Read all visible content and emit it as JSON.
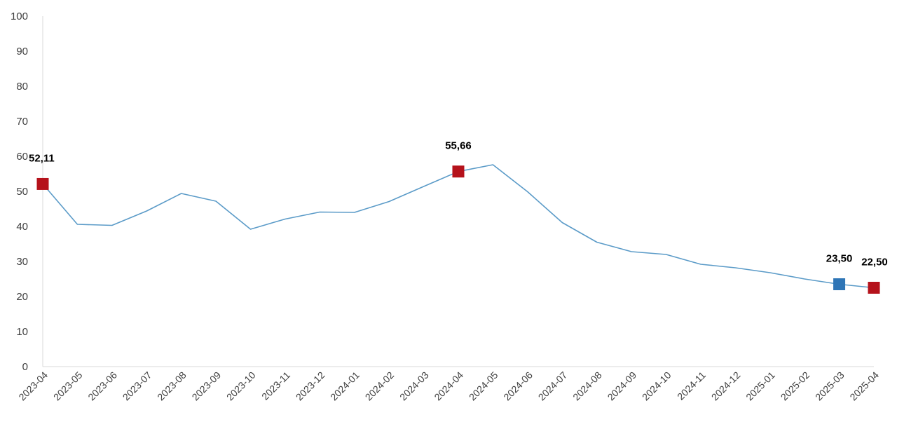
{
  "chart_data": {
    "type": "line",
    "title": "",
    "xlabel": "",
    "ylabel": "",
    "ylim": [
      0,
      100
    ],
    "y_ticks": [
      "0",
      "10",
      "20",
      "30",
      "40",
      "50",
      "60",
      "70",
      "80",
      "90",
      "100"
    ],
    "grid": false,
    "legend": "none",
    "categories": [
      "2023-04",
      "2023-05",
      "2023-06",
      "2023-07",
      "2023-08",
      "2023-09",
      "2023-10",
      "2023-11",
      "2023-12",
      "2024-01",
      "2024-02",
      "2024-03",
      "2024-04",
      "2024-05",
      "2024-06",
      "2024-07",
      "2024-08",
      "2024-09",
      "2024-10",
      "2024-11",
      "2024-12",
      "2025-01",
      "2025-02",
      "2025-03",
      "2025-04"
    ],
    "series": [
      {
        "values": [
          52.11,
          40.6,
          40.3,
          44.4,
          49.4,
          47.2,
          39.2,
          42.1,
          44.1,
          44.0,
          47.1,
          51.4,
          55.66,
          57.6,
          49.9,
          41.1,
          35.5,
          32.8,
          32.0,
          29.2,
          28.2,
          26.8,
          25.0,
          23.5,
          22.5
        ],
        "color": "#5b9bc8"
      }
    ],
    "annotations": [
      {
        "category": "2023-04",
        "value": 52.11,
        "label": "52,11",
        "marker_color": "#b5121b"
      },
      {
        "category": "2024-04",
        "value": 55.66,
        "label": "55,66",
        "marker_color": "#b5121b"
      },
      {
        "category": "2025-03",
        "value": 23.5,
        "label": "23,50",
        "marker_color": "#2e75b6"
      },
      {
        "category": "2025-04",
        "value": 22.5,
        "label": "22,50",
        "marker_color": "#b5121b"
      }
    ],
    "axis_color": "#d9d9d9"
  }
}
